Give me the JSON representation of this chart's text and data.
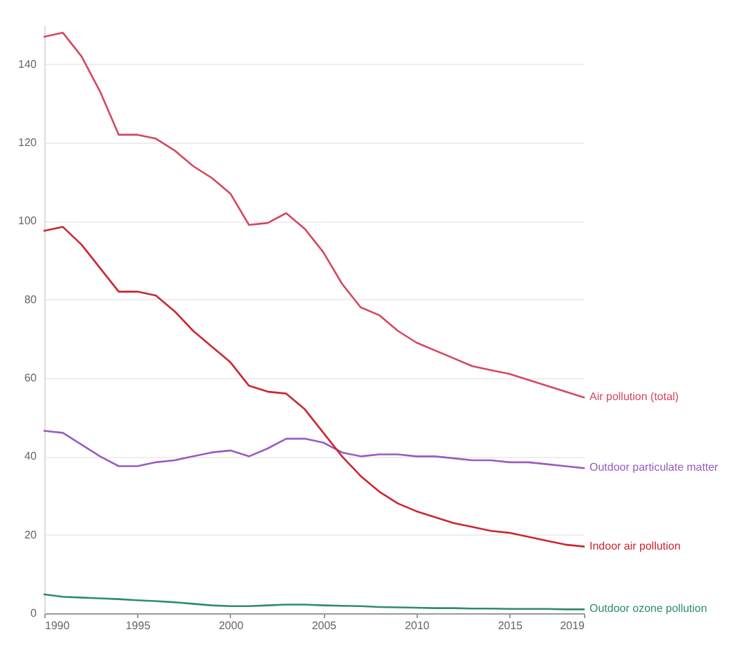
{
  "chart_data": {
    "type": "line",
    "x": [
      1990,
      1991,
      1992,
      1993,
      1994,
      1995,
      1996,
      1997,
      1998,
      1999,
      2000,
      2001,
      2002,
      2003,
      2004,
      2005,
      2006,
      2007,
      2008,
      2009,
      2010,
      2011,
      2012,
      2013,
      2014,
      2015,
      2016,
      2017,
      2018,
      2019
    ],
    "series": [
      {
        "name": "Air pollution (total)",
        "color": "#d6465f",
        "values": [
          147,
          148,
          142,
          133,
          122,
          122,
          121,
          118,
          114,
          111,
          107,
          99,
          99.5,
          102,
          98,
          92,
          84,
          78,
          76,
          72,
          69,
          67,
          65,
          63,
          62,
          61,
          59.5,
          58,
          56.5,
          55
        ]
      },
      {
        "name": "Outdoor particulate matter",
        "color": "#9a5bbf",
        "values": [
          46.5,
          46,
          43,
          40,
          37.5,
          37.5,
          38.5,
          39,
          40,
          41,
          41.5,
          40,
          42,
          44.5,
          44.5,
          43.5,
          41,
          40,
          40.5,
          40.5,
          40,
          40,
          39.5,
          39,
          39,
          38.5,
          38.5,
          38,
          37.5,
          37
        ]
      },
      {
        "name": "Indoor air pollution",
        "color": "#cc2530",
        "values": [
          97.5,
          98.5,
          94,
          88,
          82,
          82,
          81,
          77,
          72,
          68,
          64,
          58,
          56.5,
          56,
          52,
          46,
          40,
          35,
          31,
          28,
          26,
          24.5,
          23,
          22,
          21,
          20.5,
          19.5,
          18.5,
          17.5,
          17
        ]
      },
      {
        "name": "Outdoor ozone pollution",
        "color": "#2e8b6f",
        "values": [
          4.8,
          4.2,
          4,
          3.8,
          3.6,
          3.3,
          3.1,
          2.8,
          2.4,
          2,
          1.8,
          1.8,
          2,
          2.2,
          2.2,
          2,
          1.9,
          1.8,
          1.6,
          1.5,
          1.4,
          1.3,
          1.3,
          1.2,
          1.2,
          1.1,
          1.1,
          1.1,
          1,
          1
        ]
      }
    ],
    "xlim": [
      1990,
      2019
    ],
    "xticks": [
      1990,
      1995,
      2000,
      2005,
      2010,
      2015,
      2019
    ],
    "ylim": [
      0,
      150
    ],
    "yticks": [
      0,
      20,
      40,
      60,
      80,
      100,
      120,
      140
    ],
    "grid": "y",
    "marker": "none",
    "line_style": "solid"
  }
}
